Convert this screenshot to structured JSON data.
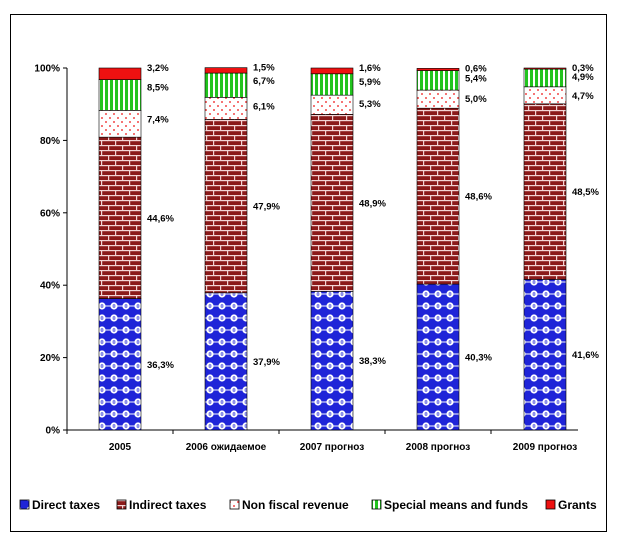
{
  "chart_data": {
    "type": "bar",
    "stacked": true,
    "percent": true,
    "categories": [
      "2005",
      "2006 ожидаемое",
      "2007 прогноз",
      "2008 прогноз",
      "2009 прогноз"
    ],
    "series": [
      {
        "name": "Direct taxes",
        "color": "#1f24d8",
        "values": [
          36.3,
          37.9,
          38.3,
          40.3,
          41.6
        ],
        "labels": [
          "36,3%",
          "37,9%",
          "38,3%",
          "40,3%",
          "41,6%"
        ]
      },
      {
        "name": "Indirect taxes",
        "color": "#8b1a1a",
        "values": [
          44.6,
          47.9,
          48.9,
          48.6,
          48.5
        ],
        "labels": [
          "44,6%",
          "47,9%",
          "48,9%",
          "48,6%",
          "48,5%"
        ]
      },
      {
        "name": "Non fiscal revenue",
        "color": "#ffffff",
        "values": [
          7.4,
          6.1,
          5.3,
          5.0,
          4.7
        ],
        "labels": [
          "7,4%",
          "6,1%",
          "5,3%",
          "5,0%",
          "4,7%"
        ]
      },
      {
        "name": "Special means and funds",
        "color": "#22c41e",
        "values": [
          8.5,
          6.7,
          5.9,
          5.4,
          4.9
        ],
        "labels": [
          "8,5%",
          "6,7%",
          "5,9%",
          "5,4%",
          "4,9%"
        ]
      },
      {
        "name": "Grants",
        "color": "#ee1111",
        "values": [
          3.2,
          1.5,
          1.6,
          0.6,
          0.3
        ],
        "labels": [
          "3,2%",
          "1,5%",
          "1,6%",
          "0,6%",
          "0,3%"
        ]
      }
    ],
    "yticks": [
      "0%",
      "20%",
      "40%",
      "60%",
      "80%",
      "100%"
    ],
    "ylim": [
      0,
      100
    ],
    "grid": false,
    "legend_position": "bottom"
  }
}
